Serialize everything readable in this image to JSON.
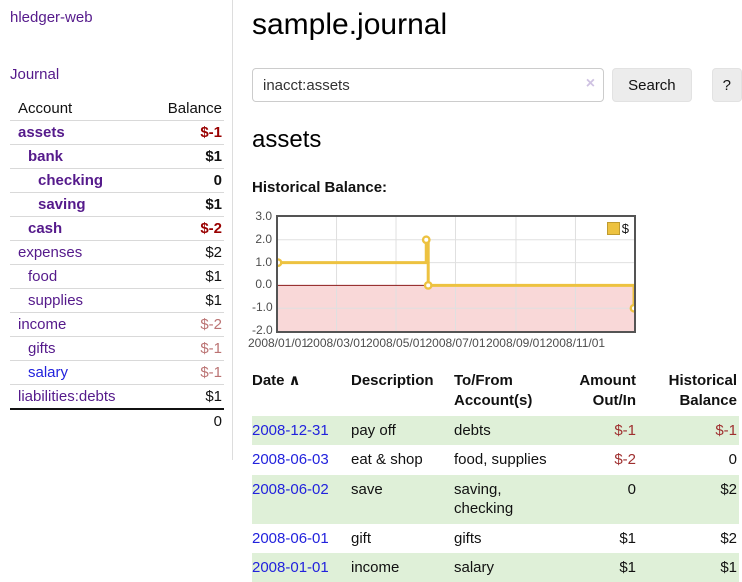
{
  "sidebar": {
    "app_title": "hledger-web",
    "journal_link": "Journal",
    "accounts_table": {
      "headers": {
        "account": "Account",
        "balance": "Balance"
      },
      "rows": [
        {
          "name": "assets",
          "level": 1,
          "bold": true,
          "link": "purple",
          "balance": "$-1",
          "balance_class": "neg-strong"
        },
        {
          "name": "bank",
          "level": 2,
          "bold": true,
          "link": "purple",
          "balance": "$1",
          "balance_class": "pos-strong"
        },
        {
          "name": "checking",
          "level": 3,
          "bold": true,
          "link": "purple",
          "balance": "0",
          "balance_class": "pos-strong"
        },
        {
          "name": "saving",
          "level": 3,
          "bold": true,
          "link": "purple",
          "balance": "$1",
          "balance_class": "pos-strong"
        },
        {
          "name": "cash",
          "level": 2,
          "bold": true,
          "link": "purple",
          "balance": "$-2",
          "balance_class": "neg-strong"
        },
        {
          "name": "expenses",
          "level": 1,
          "bold": false,
          "link": "purple",
          "balance": "$2",
          "balance_class": "pos"
        },
        {
          "name": "food",
          "level": 2,
          "bold": false,
          "link": "purple",
          "balance": "$1",
          "balance_class": "pos"
        },
        {
          "name": "supplies",
          "level": 2,
          "bold": false,
          "link": "purple",
          "balance": "$1",
          "balance_class": "pos"
        },
        {
          "name": "income",
          "level": 1,
          "bold": false,
          "link": "purple",
          "balance": "$-2",
          "balance_class": "neg-muted"
        },
        {
          "name": "gifts",
          "level": 2,
          "bold": false,
          "link": "purple",
          "balance": "$-1",
          "balance_class": "neg-muted"
        },
        {
          "name": "salary",
          "level": 2,
          "bold": false,
          "link": "blue",
          "balance": "$-1",
          "balance_class": "neg-muted"
        },
        {
          "name": "liabilities:debts",
          "level": 1,
          "bold": false,
          "link": "purple",
          "balance": "$1",
          "balance_class": "pos"
        }
      ],
      "total": "0"
    }
  },
  "header": {
    "title": "sample.journal"
  },
  "search": {
    "value": "inacct:assets",
    "clear_icon": "×",
    "search_label": "Search",
    "help_label": "?"
  },
  "account_page": {
    "title": "assets",
    "chart_label": "Historical Balance:"
  },
  "chart_data": {
    "type": "line",
    "title": "Historical Balance",
    "step": true,
    "series": [
      {
        "name": "$",
        "color": "#edc240",
        "points": [
          [
            "2008-01-01",
            1.0
          ],
          [
            "2008-06-01",
            2.0
          ],
          [
            "2008-06-03",
            0.0
          ],
          [
            "2008-12-31",
            -1.0
          ]
        ]
      }
    ],
    "x_range": [
      "2008-01-01",
      "2008-12-31"
    ],
    "ylim": [
      -2.0,
      3.0
    ],
    "yticks": [
      "3.0",
      "2.0",
      "1.0",
      "0.0",
      "-1.0",
      "-2.0"
    ],
    "xticks": [
      "2008/01/01",
      "2008/03/01",
      "2008/05/01",
      "2008/07/01",
      "2008/09/01",
      "2008/11/01"
    ],
    "grid": true,
    "grid_color": "#e0e0e0",
    "border_color": "#545454",
    "negative_region_color": "#f9d8d8",
    "zero_line_color": "#8b1a1a",
    "legend": {
      "label": "$",
      "position": "top-right",
      "swatch_color": "#edc240"
    }
  },
  "register": {
    "sort_icon": "∧",
    "headers": {
      "date": "Date",
      "description": "Description",
      "accounts": "To/From Account(s)",
      "amount": "Amount Out/In",
      "balance": "Historical Balance"
    },
    "rows": [
      {
        "date": "2008-12-31",
        "description": "pay off",
        "accounts": "debts",
        "amount": "$-1",
        "amount_class": "neg",
        "balance": "$-1",
        "balance_class": "neg",
        "striped": true
      },
      {
        "date": "2008-06-03",
        "description": "eat & shop",
        "accounts": "food, supplies",
        "amount": "$-2",
        "amount_class": "neg",
        "balance": "0",
        "balance_class": "pos",
        "striped": false
      },
      {
        "date": "2008-06-02",
        "description": "save",
        "accounts": "saving, checking",
        "amount": "0",
        "amount_class": "pos",
        "balance": "$2",
        "balance_class": "pos",
        "striped": true
      },
      {
        "date": "2008-06-01",
        "description": "gift",
        "accounts": "gifts",
        "amount": "$1",
        "amount_class": "pos",
        "balance": "$2",
        "balance_class": "pos",
        "striped": false
      },
      {
        "date": "2008-01-01",
        "description": "income",
        "accounts": "salary",
        "amount": "$1",
        "amount_class": "pos",
        "balance": "$1",
        "balance_class": "pos",
        "striped": true
      }
    ]
  }
}
